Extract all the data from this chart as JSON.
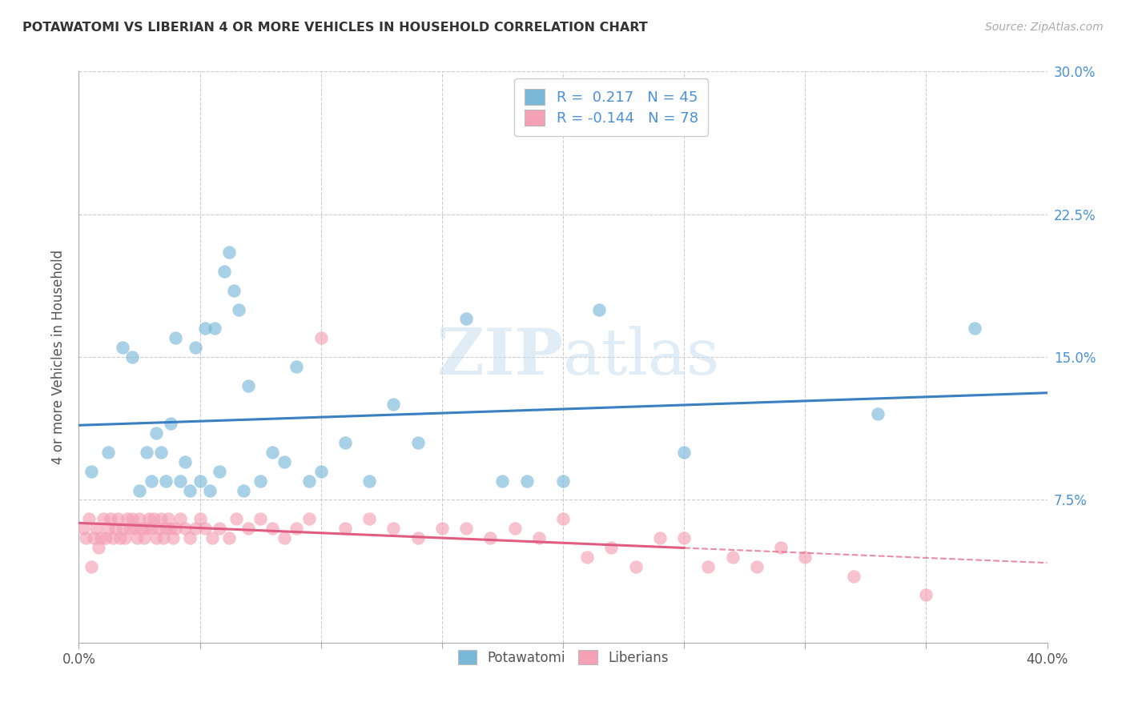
{
  "title": "POTAWATOMI VS LIBERIAN 4 OR MORE VEHICLES IN HOUSEHOLD CORRELATION CHART",
  "source": "Source: ZipAtlas.com",
  "ylabel": "4 or more Vehicles in Household",
  "xlabel_potawatomi": "Potawatomi",
  "xlabel_liberian": "Liberians",
  "xlim": [
    0.0,
    0.4
  ],
  "ylim": [
    0.0,
    0.3
  ],
  "xticks": [
    0.0,
    0.05,
    0.1,
    0.15,
    0.2,
    0.25,
    0.3,
    0.35,
    0.4
  ],
  "xtick_labels_show": {
    "0.0": "0.0%",
    "0.40": "40.0%"
  },
  "yticks": [
    0.0,
    0.075,
    0.15,
    0.225,
    0.3
  ],
  "ytick_labels_right": [
    "",
    "7.5%",
    "15.0%",
    "22.5%",
    "30.0%"
  ],
  "R_potawatomi": 0.217,
  "N_potawatomi": 45,
  "R_liberian": -0.144,
  "N_liberian": 78,
  "color_potawatomi": "#7ab8d9",
  "color_liberian": "#f4a0b5",
  "line_color_potawatomi": "#3a7fc1",
  "line_color_liberian": "#e05c80",
  "watermark_color": "#c8dff0",
  "potawatomi_x": [
    0.005,
    0.012,
    0.018,
    0.022,
    0.025,
    0.028,
    0.03,
    0.032,
    0.034,
    0.036,
    0.038,
    0.04,
    0.042,
    0.044,
    0.046,
    0.048,
    0.05,
    0.052,
    0.054,
    0.056,
    0.058,
    0.06,
    0.062,
    0.064,
    0.066,
    0.068,
    0.07,
    0.075,
    0.08,
    0.085,
    0.09,
    0.095,
    0.1,
    0.11,
    0.12,
    0.13,
    0.14,
    0.16,
    0.175,
    0.185,
    0.2,
    0.215,
    0.25,
    0.33,
    0.37
  ],
  "potawatomi_y": [
    0.09,
    0.1,
    0.155,
    0.15,
    0.08,
    0.1,
    0.085,
    0.11,
    0.1,
    0.085,
    0.115,
    0.16,
    0.085,
    0.095,
    0.08,
    0.155,
    0.085,
    0.165,
    0.08,
    0.165,
    0.09,
    0.195,
    0.205,
    0.185,
    0.175,
    0.08,
    0.135,
    0.085,
    0.1,
    0.095,
    0.145,
    0.085,
    0.09,
    0.105,
    0.085,
    0.125,
    0.105,
    0.17,
    0.085,
    0.085,
    0.085,
    0.175,
    0.1,
    0.12,
    0.165
  ],
  "liberian_x": [
    0.002,
    0.003,
    0.004,
    0.005,
    0.006,
    0.007,
    0.008,
    0.009,
    0.01,
    0.011,
    0.012,
    0.013,
    0.014,
    0.015,
    0.016,
    0.017,
    0.018,
    0.019,
    0.02,
    0.021,
    0.022,
    0.023,
    0.024,
    0.025,
    0.026,
    0.027,
    0.028,
    0.029,
    0.03,
    0.031,
    0.032,
    0.033,
    0.034,
    0.035,
    0.036,
    0.037,
    0.038,
    0.039,
    0.04,
    0.042,
    0.044,
    0.046,
    0.048,
    0.05,
    0.052,
    0.055,
    0.058,
    0.062,
    0.065,
    0.07,
    0.075,
    0.08,
    0.085,
    0.09,
    0.095,
    0.1,
    0.11,
    0.12,
    0.13,
    0.14,
    0.15,
    0.16,
    0.17,
    0.18,
    0.19,
    0.2,
    0.21,
    0.22,
    0.23,
    0.24,
    0.25,
    0.26,
    0.27,
    0.28,
    0.29,
    0.3,
    0.32,
    0.35
  ],
  "liberian_y": [
    0.06,
    0.055,
    0.065,
    0.04,
    0.055,
    0.06,
    0.05,
    0.055,
    0.065,
    0.055,
    0.06,
    0.065,
    0.055,
    0.06,
    0.065,
    0.055,
    0.06,
    0.055,
    0.065,
    0.06,
    0.065,
    0.06,
    0.055,
    0.065,
    0.06,
    0.055,
    0.06,
    0.065,
    0.06,
    0.065,
    0.055,
    0.06,
    0.065,
    0.055,
    0.06,
    0.065,
    0.06,
    0.055,
    0.06,
    0.065,
    0.06,
    0.055,
    0.06,
    0.065,
    0.06,
    0.055,
    0.06,
    0.055,
    0.065,
    0.06,
    0.065,
    0.06,
    0.055,
    0.06,
    0.065,
    0.16,
    0.06,
    0.065,
    0.06,
    0.055,
    0.06,
    0.06,
    0.055,
    0.06,
    0.055,
    0.065,
    0.045,
    0.05,
    0.04,
    0.055,
    0.055,
    0.04,
    0.045,
    0.04,
    0.05,
    0.045,
    0.035,
    0.025
  ]
}
